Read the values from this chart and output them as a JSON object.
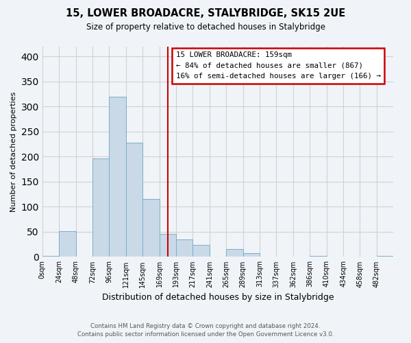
{
  "title": "15, LOWER BROADACRE, STALYBRIDGE, SK15 2UE",
  "subtitle": "Size of property relative to detached houses in Stalybridge",
  "xlabel": "Distribution of detached houses by size in Stalybridge",
  "ylabel": "Number of detached properties",
  "footer_line1": "Contains HM Land Registry data © Crown copyright and database right 2024.",
  "footer_line2": "Contains public sector information licensed under the Open Government Licence v3.0.",
  "bin_labels": [
    "0sqm",
    "24sqm",
    "48sqm",
    "72sqm",
    "96sqm",
    "121sqm",
    "145sqm",
    "169sqm",
    "193sqm",
    "217sqm",
    "241sqm",
    "265sqm",
    "289sqm",
    "313sqm",
    "337sqm",
    "362sqm",
    "386sqm",
    "410sqm",
    "434sqm",
    "458sqm",
    "482sqm"
  ],
  "bar_values": [
    2,
    51,
    0,
    196,
    320,
    228,
    116,
    46,
    35,
    24,
    0,
    15,
    7,
    0,
    0,
    0,
    2,
    0,
    0,
    0,
    2
  ],
  "bar_color": "#c9d9e8",
  "bar_edge_color": "#7aaec8",
  "vline_x_index": 7,
  "vline_color": "#cc0000",
  "annotation_box_title": "15 LOWER BROADACRE: 159sqm",
  "annotation_line1": "← 84% of detached houses are smaller (867)",
  "annotation_line2": "16% of semi-detached houses are larger (166) →",
  "annotation_box_edge_color": "#cc0000",
  "ylim": [
    0,
    420
  ],
  "yticks": [
    0,
    50,
    100,
    150,
    200,
    250,
    300,
    350,
    400
  ],
  "grid_color": "#d0d0d0",
  "bg_color": "#f0f4f8"
}
